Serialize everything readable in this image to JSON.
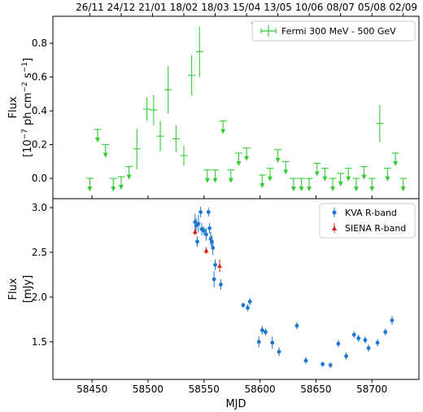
{
  "chart_data": {
    "type": "scatter",
    "x_range": [
      58415,
      58742
    ],
    "x_label": "MJD",
    "x_ticks": [
      58450,
      58500,
      58550,
      58600,
      58650,
      58700
    ],
    "top_date_ticks": [
      {
        "mjd": 58448,
        "label": "26/11"
      },
      {
        "mjd": 58476,
        "label": "24/12"
      },
      {
        "mjd": 58504,
        "label": "21/01"
      },
      {
        "mjd": 58532,
        "label": "18/02"
      },
      {
        "mjd": 58560,
        "label": "18/03"
      },
      {
        "mjd": 58588,
        "label": "15/04"
      },
      {
        "mjd": 58616,
        "label": "13/05"
      },
      {
        "mjd": 58644,
        "label": "10/06"
      },
      {
        "mjd": 58672,
        "label": "08/07"
      },
      {
        "mjd": 58700,
        "label": "05/08"
      },
      {
        "mjd": 58728,
        "label": "02/09"
      }
    ],
    "panels": [
      {
        "id": "gamma",
        "y_label_line1": "Flux",
        "y_label_line2": "[10",
        "y_label_exp1": "−7",
        "y_label_mid": " ph cm",
        "y_label_exp2": "−2",
        "y_label_mid2": " s",
        "y_label_exp3": "−1",
        "y_label_end": "]",
        "y_range": [
          -0.12,
          0.96
        ],
        "y_ticks": [
          0.0,
          0.2,
          0.4,
          0.6,
          0.8
        ],
        "y_tick_labels": [
          "0.0",
          "0.2",
          "0.4",
          "0.6",
          "0.8"
        ],
        "legend": [
          {
            "label": "Fermi 300 MeV - 500 GeV",
            "color": "#33cc33",
            "marker": "errorbar"
          }
        ],
        "series": [
          {
            "name": "Fermi 300 MeV - 500 GeV",
            "color": "#33cc33",
            "points": [
              {
                "x": 58490,
                "y": 0.175,
                "err": 0.12
              },
              {
                "x": 58499,
                "y": 0.41,
                "err": 0.07
              },
              {
                "x": 58505,
                "y": 0.405,
                "err": 0.09
              },
              {
                "x": 58511,
                "y": 0.25,
                "err": 0.09
              },
              {
                "x": 58518,
                "y": 0.525,
                "err": 0.14
              },
              {
                "x": 58525,
                "y": 0.235,
                "err": 0.08
              },
              {
                "x": 58532,
                "y": 0.135,
                "err": 0.06
              },
              {
                "x": 58539,
                "y": 0.61,
                "err": 0.12
              },
              {
                "x": 58546,
                "y": 0.75,
                "err": 0.15
              },
              {
                "x": 58707,
                "y": 0.325,
                "err": 0.11
              }
            ],
            "upper_limits": [
              {
                "x": 58448,
                "y": 0.0
              },
              {
                "x": 58455,
                "y": 0.29
              },
              {
                "x": 58462,
                "y": 0.2
              },
              {
                "x": 58469,
                "y": 0.0
              },
              {
                "x": 58476,
                "y": 0.01
              },
              {
                "x": 58483,
                "y": 0.07
              },
              {
                "x": 58553,
                "y": 0.05
              },
              {
                "x": 58560,
                "y": 0.05
              },
              {
                "x": 58567,
                "y": 0.34
              },
              {
                "x": 58574,
                "y": 0.05
              },
              {
                "x": 58581,
                "y": 0.15
              },
              {
                "x": 58588,
                "y": 0.18
              },
              {
                "x": 58595,
                "y": 0.92
              },
              {
                "x": 58602,
                "y": 0.02
              },
              {
                "x": 58609,
                "y": 0.06
              },
              {
                "x": 58616,
                "y": 0.17
              },
              {
                "x": 58623,
                "y": 0.1
              },
              {
                "x": 58630,
                "y": 0.0
              },
              {
                "x": 58637,
                "y": 0.0
              },
              {
                "x": 58644,
                "y": 0.0
              },
              {
                "x": 58651,
                "y": 0.09
              },
              {
                "x": 58658,
                "y": 0.06
              },
              {
                "x": 58665,
                "y": 0.0
              },
              {
                "x": 58672,
                "y": 0.03
              },
              {
                "x": 58679,
                "y": 0.06
              },
              {
                "x": 58686,
                "y": 0.0
              },
              {
                "x": 58693,
                "y": 0.07
              },
              {
                "x": 58700,
                "y": 0.0
              },
              {
                "x": 58714,
                "y": 0.06
              },
              {
                "x": 58721,
                "y": 0.15
              },
              {
                "x": 58728,
                "y": 0.0
              }
            ]
          }
        ]
      },
      {
        "id": "optical",
        "y_label_line1": "Flux",
        "y_label_line2": "[mJy]",
        "y_range": [
          1.08,
          3.1
        ],
        "y_ticks": [
          1.5,
          2.0,
          2.5,
          3.0
        ],
        "y_tick_labels": [
          "1.5",
          "2.0",
          "2.5",
          "3.0"
        ],
        "legend": [
          {
            "label": "KVA R-band",
            "color": "#1f77d4",
            "marker": "circle"
          },
          {
            "label": "SIENA R-band",
            "color": "#d62728",
            "marker": "triangle"
          }
        ],
        "series": [
          {
            "name": "KVA R-band",
            "color": "#1f77d4",
            "marker": "circle",
            "points": [
              {
                "x": 58542,
                "y": 2.84,
                "err": 0.09
              },
              {
                "x": 58543,
                "y": 2.8,
                "err": 0.08
              },
              {
                "x": 58544,
                "y": 2.62,
                "err": 0.06
              },
              {
                "x": 58545,
                "y": 2.82,
                "err": 0.1
              },
              {
                "x": 58547,
                "y": 2.95,
                "err": 0.06
              },
              {
                "x": 58548,
                "y": 2.76,
                "err": 0.07
              },
              {
                "x": 58550,
                "y": 2.74,
                "err": 0.05
              },
              {
                "x": 58552,
                "y": 2.7,
                "err": 0.07
              },
              {
                "x": 58554,
                "y": 2.95,
                "err": 0.05
              },
              {
                "x": 58555,
                "y": 2.77,
                "err": 0.06
              },
              {
                "x": 58556,
                "y": 2.65,
                "err": 0.08
              },
              {
                "x": 58557,
                "y": 2.62,
                "err": 0.07
              },
              {
                "x": 58558,
                "y": 2.55,
                "err": 0.08
              },
              {
                "x": 58559,
                "y": 2.2,
                "err": 0.09
              },
              {
                "x": 58560,
                "y": 2.36,
                "err": 0.06
              },
              {
                "x": 58565,
                "y": 2.14,
                "err": 0.06
              },
              {
                "x": 58585,
                "y": 1.91,
                "err": 0.03
              },
              {
                "x": 58589,
                "y": 1.88,
                "err": 0.04
              },
              {
                "x": 58591,
                "y": 1.95,
                "err": 0.04
              },
              {
                "x": 58599,
                "y": 1.5,
                "err": 0.06
              },
              {
                "x": 58602,
                "y": 1.63,
                "err": 0.05
              },
              {
                "x": 58605,
                "y": 1.61,
                "err": 0.04
              },
              {
                "x": 58611,
                "y": 1.49,
                "err": 0.07
              },
              {
                "x": 58617,
                "y": 1.39,
                "err": 0.05
              },
              {
                "x": 58633,
                "y": 1.68,
                "err": 0.04
              },
              {
                "x": 58641,
                "y": 1.29,
                "err": 0.04
              },
              {
                "x": 58656,
                "y": 1.25,
                "err": 0.03
              },
              {
                "x": 58663,
                "y": 1.24,
                "err": 0.03
              },
              {
                "x": 58670,
                "y": 1.48,
                "err": 0.04
              },
              {
                "x": 58677,
                "y": 1.34,
                "err": 0.04
              },
              {
                "x": 58684,
                "y": 1.58,
                "err": 0.04
              },
              {
                "x": 58688,
                "y": 1.54,
                "err": 0.04
              },
              {
                "x": 58694,
                "y": 1.52,
                "err": 0.04
              },
              {
                "x": 58697,
                "y": 1.43,
                "err": 0.04
              },
              {
                "x": 58705,
                "y": 1.49,
                "err": 0.04
              },
              {
                "x": 58712,
                "y": 1.61,
                "err": 0.04
              },
              {
                "x": 58718,
                "y": 1.74,
                "err": 0.05
              }
            ]
          },
          {
            "name": "SIENA R-band",
            "color": "#d62728",
            "marker": "triangle",
            "points": [
              {
                "x": 58542,
                "y": 2.73,
                "err": 0.04
              },
              {
                "x": 58552,
                "y": 2.52,
                "err": 0.04
              },
              {
                "x": 58564,
                "y": 2.35,
                "err": 0.07
              }
            ]
          }
        ]
      }
    ]
  }
}
